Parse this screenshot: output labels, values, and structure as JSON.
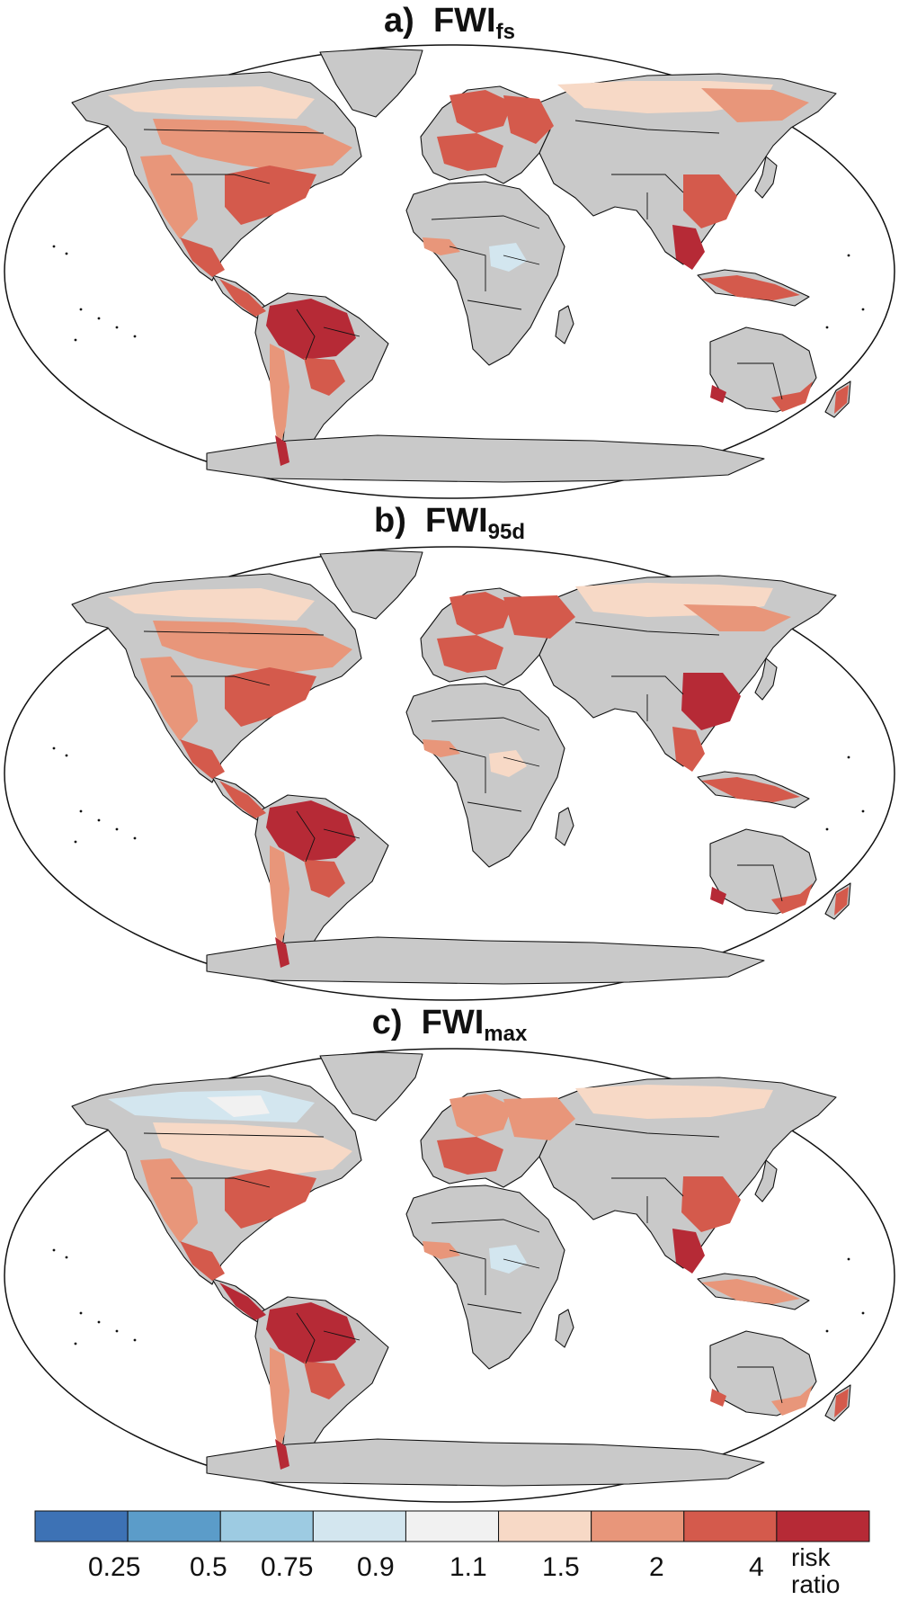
{
  "panels": [
    {
      "id": "a",
      "label": "a)",
      "title_main": "FWI",
      "title_sub": "fs"
    },
    {
      "id": "b",
      "label": "b)",
      "title_main": "FWI",
      "title_sub": "95d"
    },
    {
      "id": "c",
      "label": "c)",
      "title_main": "FWI",
      "title_sub": "max"
    }
  ],
  "colors": {
    "land": "#c9c9c9",
    "ocean": "#ffffff",
    "border": "#111111",
    "c1": "#3d72b5",
    "c2": "#5b9cc9",
    "c3": "#9dcbe2",
    "c4": "#d3e6ef",
    "c5": "#f1f1f1",
    "c6": "#f7d9c6",
    "c7": "#e8967a",
    "c8": "#d45a4c",
    "c9": "#b62a36"
  },
  "colorbar": {
    "tick_labels": [
      "0.25",
      "0.5",
      "0.75",
      "0.9",
      "1.1",
      "1.5",
      "2",
      "4"
    ],
    "unit_line1": "risk",
    "unit_line2": "ratio",
    "bins": [
      "c1",
      "c2",
      "c3",
      "c4",
      "c5",
      "c6",
      "c7",
      "c8",
      "c9"
    ]
  }
}
